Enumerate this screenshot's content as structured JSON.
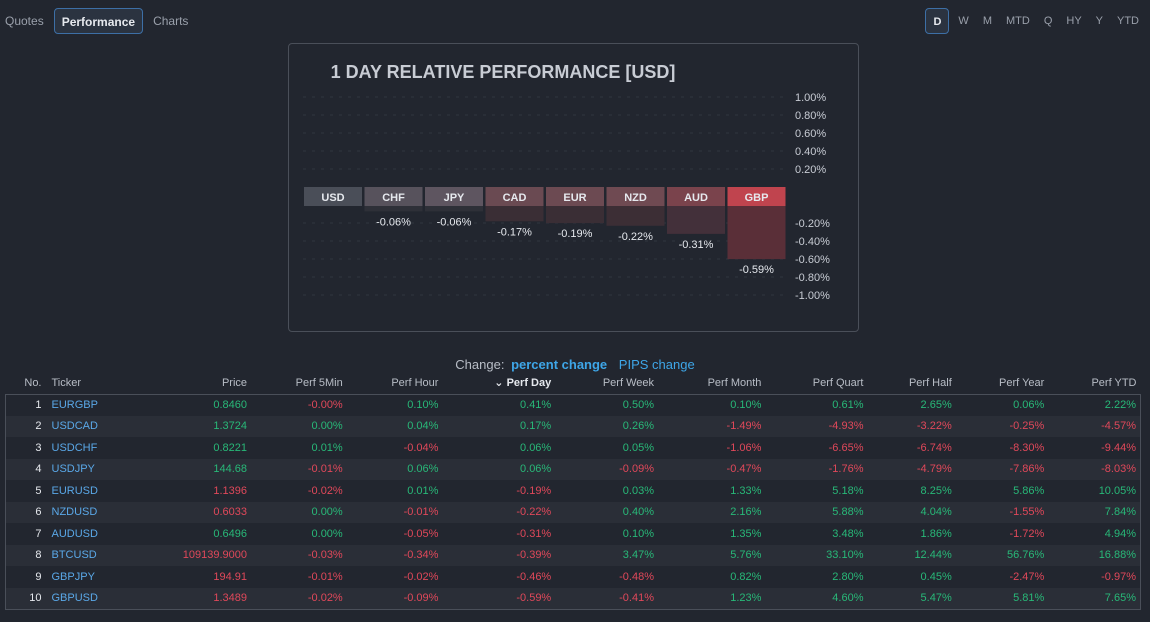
{
  "top_tabs": [
    {
      "label": "Quotes",
      "active": false
    },
    {
      "label": "Performance",
      "active": true
    },
    {
      "label": "Charts",
      "active": false
    }
  ],
  "period_tabs": [
    {
      "label": "D",
      "active": true
    },
    {
      "label": "W",
      "active": false
    },
    {
      "label": "M",
      "active": false
    },
    {
      "label": "MTD",
      "active": false
    },
    {
      "label": "Q",
      "active": false
    },
    {
      "label": "HY",
      "active": false
    },
    {
      "label": "Y",
      "active": false
    },
    {
      "label": "YTD",
      "active": false
    }
  ],
  "chart_data": {
    "type": "bar",
    "title": "1 DAY RELATIVE PERFORMANCE  [USD]",
    "categories": [
      "USD",
      "CHF",
      "JPY",
      "CAD",
      "EUR",
      "NZD",
      "AUD",
      "GBP"
    ],
    "values": [
      0,
      -0.06,
      -0.06,
      -0.17,
      -0.19,
      -0.22,
      -0.31,
      -0.59
    ],
    "value_labels": [
      "",
      "-0.06%",
      "-0.06%",
      "-0.17%",
      "-0.19%",
      "-0.22%",
      "-0.31%",
      "-0.59%"
    ],
    "upper_ticks": [
      "1.00%",
      "0.80%",
      "0.60%",
      "0.40%",
      "0.20%"
    ],
    "lower_ticks": [
      "-0.20%",
      "-0.40%",
      "-0.60%",
      "-0.80%",
      "-1.00%"
    ],
    "ylim": [
      -1.0,
      1.0
    ],
    "grid": true
  },
  "change_mode": {
    "label": "Change:",
    "percent": "percent change",
    "pips": "PIPS change"
  },
  "table": {
    "headers": [
      "No.",
      "Ticker",
      "Price",
      "Perf 5Min",
      "Perf Hour",
      "Perf Day",
      "Perf Week",
      "Perf Month",
      "Perf Quart",
      "Perf Half",
      "Perf Year",
      "Perf YTD"
    ],
    "sort_indicator": "⌄",
    "rows": [
      [
        "1",
        "EURGBP",
        "0.8460",
        "-0.00%",
        "0.10%",
        "0.41%",
        "0.50%",
        "0.10%",
        "0.61%",
        "2.65%",
        "0.06%",
        "2.22%"
      ],
      [
        "2",
        "USDCAD",
        "1.3724",
        "0.00%",
        "0.04%",
        "0.17%",
        "0.26%",
        "-1.49%",
        "-4.93%",
        "-3.22%",
        "-0.25%",
        "-4.57%"
      ],
      [
        "3",
        "USDCHF",
        "0.8221",
        "0.01%",
        "-0.04%",
        "0.06%",
        "0.05%",
        "-1.06%",
        "-6.65%",
        "-6.74%",
        "-8.30%",
        "-9.44%"
      ],
      [
        "4",
        "USDJPY",
        "144.68",
        "-0.01%",
        "0.06%",
        "0.06%",
        "-0.09%",
        "-0.47%",
        "-1.76%",
        "-4.79%",
        "-7.86%",
        "-8.03%"
      ],
      [
        "5",
        "EURUSD",
        "1.1396",
        "-0.02%",
        "0.01%",
        "-0.19%",
        "0.03%",
        "1.33%",
        "5.18%",
        "8.25%",
        "5.86%",
        "10.05%"
      ],
      [
        "6",
        "NZDUSD",
        "0.6033",
        "0.00%",
        "-0.01%",
        "-0.22%",
        "0.40%",
        "2.16%",
        "5.88%",
        "4.04%",
        "-1.55%",
        "7.84%"
      ],
      [
        "7",
        "AUDUSD",
        "0.6496",
        "0.00%",
        "-0.05%",
        "-0.31%",
        "0.10%",
        "1.35%",
        "3.48%",
        "1.86%",
        "-1.72%",
        "4.94%"
      ],
      [
        "8",
        "BTCUSD",
        "109139.9000",
        "-0.03%",
        "-0.34%",
        "-0.39%",
        "3.47%",
        "5.76%",
        "33.10%",
        "12.44%",
        "56.76%",
        "16.88%"
      ],
      [
        "9",
        "GBPJPY",
        "194.91",
        "-0.01%",
        "-0.02%",
        "-0.46%",
        "-0.48%",
        "0.82%",
        "2.80%",
        "0.45%",
        "-2.47%",
        "-0.97%"
      ],
      [
        "10",
        "GBPUSD",
        "1.3489",
        "-0.02%",
        "-0.09%",
        "-0.59%",
        "-0.41%",
        "1.23%",
        "4.60%",
        "5.47%",
        "5.81%",
        "7.65%"
      ]
    ],
    "price_colors": [
      "pos",
      "pos",
      "pos",
      "pos",
      "neg",
      "neg",
      "pos",
      "neg",
      "neg",
      "neg"
    ]
  },
  "colors": {
    "positive": "#28b878",
    "negative": "#e0485a",
    "accent": "#3ea6e8",
    "background": "#22262f"
  }
}
